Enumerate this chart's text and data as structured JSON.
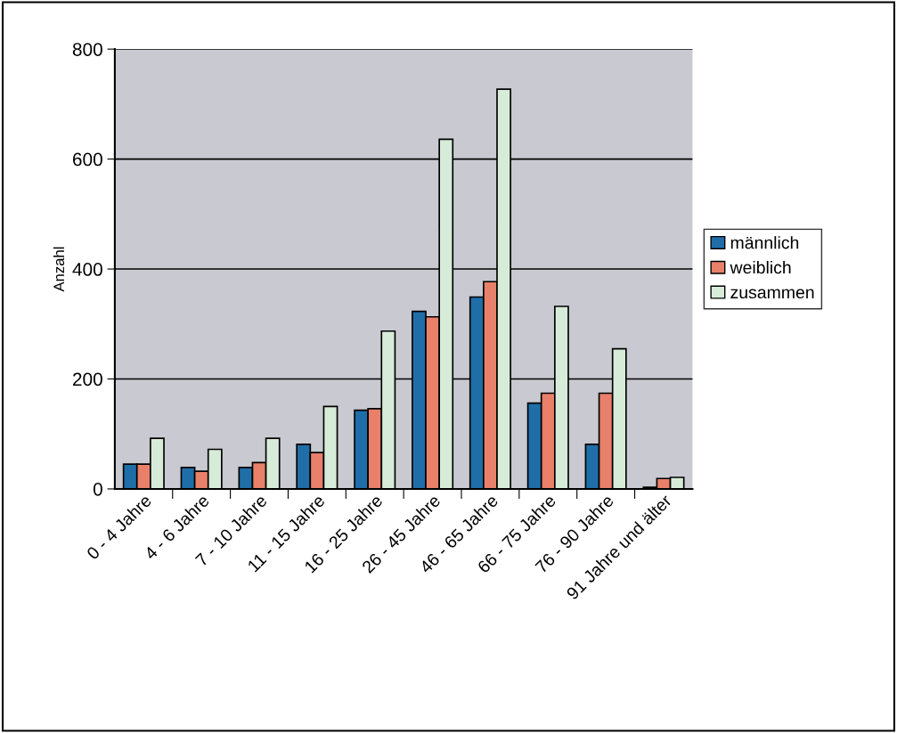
{
  "chart_data": {
    "type": "bar",
    "ylabel": "Anzahl",
    "categories": [
      "0 - 4 Jahre",
      "4 - 6 Jahre",
      "7 - 10 Jahre",
      "11 - 15 Jahre",
      "16 - 25 Jahre",
      "26 - 45 Jahre",
      "46 - 65 Jahre",
      "66 - 75 Jahre",
      "76 - 90 Jahre",
      "91 Jahre und älter"
    ],
    "series": [
      {
        "name": "männlich",
        "color": "#1f6ea8",
        "values": [
          45,
          39,
          39,
          81,
          143,
          323,
          349,
          156,
          81,
          3
        ]
      },
      {
        "name": "weiblich",
        "color": "#e8806a",
        "values": [
          45,
          32,
          48,
          66,
          146,
          313,
          377,
          174,
          174,
          19
        ]
      },
      {
        "name": "zusammen",
        "color": "#d6ecd8",
        "values": [
          92,
          72,
          92,
          150,
          287,
          636,
          727,
          332,
          255,
          21
        ]
      }
    ],
    "ylim": [
      0,
      800
    ],
    "yticks": [
      0,
      200,
      400,
      600,
      800
    ],
    "grid": "y",
    "legend": "right"
  }
}
